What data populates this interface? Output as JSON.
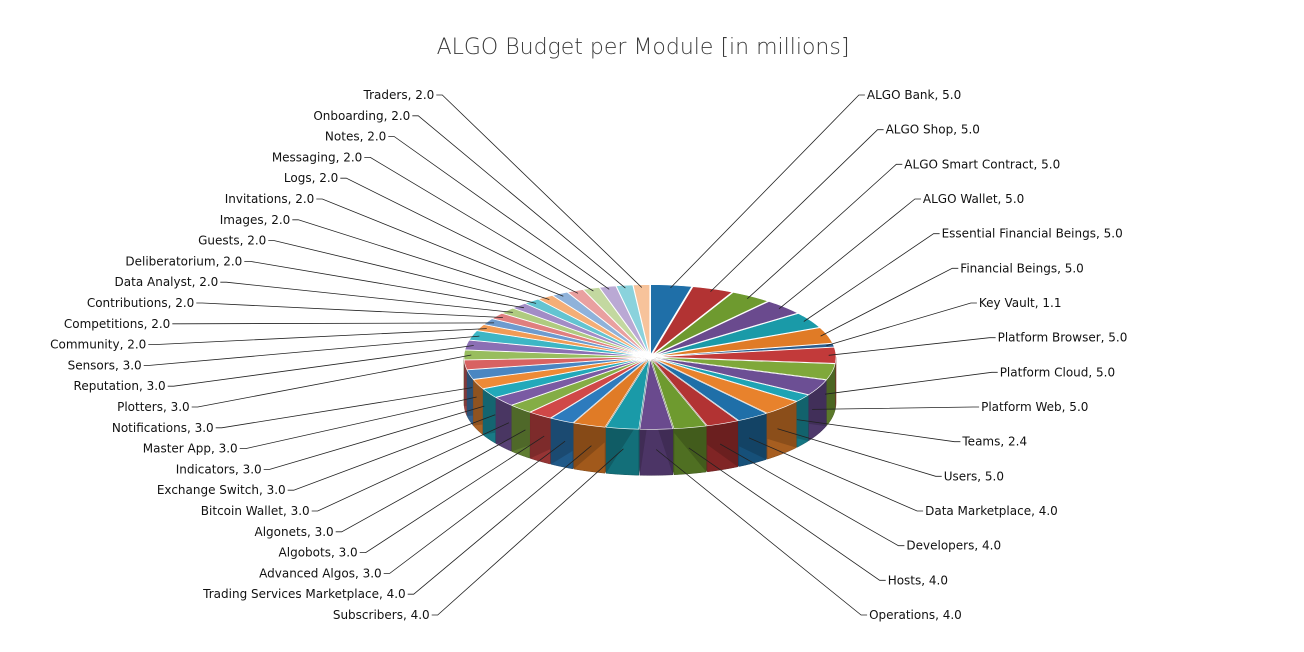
{
  "chart_data": {
    "type": "pie",
    "title": "ALGO Budget per Module  [in millions]",
    "style": "3d-exploded",
    "label_format": "{name}, {value}",
    "slices": [
      {
        "name": "ALGO Bank",
        "value": 5.0,
        "value_text": "5.0",
        "color": "#1f6fa8"
      },
      {
        "name": "ALGO Shop",
        "value": 5.0,
        "value_text": "5.0",
        "color": "#b23333"
      },
      {
        "name": "ALGO Smart Contract",
        "value": 5.0,
        "value_text": "5.0",
        "color": "#6e9a2f"
      },
      {
        "name": "ALGO Wallet",
        "value": 5.0,
        "value_text": "5.0",
        "color": "#6a4a8e"
      },
      {
        "name": "Essential Financial Beings",
        "value": 5.0,
        "value_text": "5.0",
        "color": "#1a9aa8"
      },
      {
        "name": "Financial Beings",
        "value": 5.0,
        "value_text": "5.0",
        "color": "#e07b26"
      },
      {
        "name": "Key Vault",
        "value": 1.1,
        "value_text": "1.1",
        "color": "#2a5d8f"
      },
      {
        "name": "Platform Browser",
        "value": 5.0,
        "value_text": "5.0",
        "color": "#c23a3a"
      },
      {
        "name": "Platform Cloud",
        "value": 5.0,
        "value_text": "5.0",
        "color": "#7fa83a"
      },
      {
        "name": "Platform Web",
        "value": 5.0,
        "value_text": "5.0",
        "color": "#6c4f94"
      },
      {
        "name": "Teams",
        "value": 2.4,
        "value_text": "2.4",
        "color": "#1ea3b4"
      },
      {
        "name": "Users",
        "value": 5.0,
        "value_text": "5.0",
        "color": "#e8822c"
      },
      {
        "name": "Data Marketplace",
        "value": 4.0,
        "value_text": "4.0",
        "color": "#1f6fa8"
      },
      {
        "name": "Developers",
        "value": 4.0,
        "value_text": "4.0",
        "color": "#b23333"
      },
      {
        "name": "Hosts",
        "value": 4.0,
        "value_text": "4.0",
        "color": "#6e9a2f"
      },
      {
        "name": "Operations",
        "value": 4.0,
        "value_text": "4.0",
        "color": "#6a4a8e"
      },
      {
        "name": "Subscribers",
        "value": 4.0,
        "value_text": "4.0",
        "color": "#1a9aa8"
      },
      {
        "name": "Trading Services Marketplace",
        "value": 4.0,
        "value_text": "4.0",
        "color": "#e07b26"
      },
      {
        "name": "Advanced Algos",
        "value": 3.0,
        "value_text": "3.0",
        "color": "#2d7bbd"
      },
      {
        "name": "Algobots",
        "value": 3.0,
        "value_text": "3.0",
        "color": "#d04848"
      },
      {
        "name": "Algonets",
        "value": 3.0,
        "value_text": "3.0",
        "color": "#84ad45"
      },
      {
        "name": "Bitcoin Wallet",
        "value": 3.0,
        "value_text": "3.0",
        "color": "#7a5aa3"
      },
      {
        "name": "Exchange Switch",
        "value": 3.0,
        "value_text": "3.0",
        "color": "#22a9ba"
      },
      {
        "name": "Indicators",
        "value": 3.0,
        "value_text": "3.0",
        "color": "#ee8a36"
      },
      {
        "name": "Master App",
        "value": 3.0,
        "value_text": "3.0",
        "color": "#4a86c2"
      },
      {
        "name": "Notifications",
        "value": 3.0,
        "value_text": "3.0",
        "color": "#d86262"
      },
      {
        "name": "Plotters",
        "value": 3.0,
        "value_text": "3.0",
        "color": "#98bd5e"
      },
      {
        "name": "Reputation",
        "value": 3.0,
        "value_text": "3.0",
        "color": "#8b6fb4"
      },
      {
        "name": "Sensors",
        "value": 3.0,
        "value_text": "3.0",
        "color": "#3db6c5"
      },
      {
        "name": "Community",
        "value": 2.0,
        "value_text": "2.0",
        "color": "#f19b55"
      },
      {
        "name": "Competitions",
        "value": 2.0,
        "value_text": "2.0",
        "color": "#6d9bcf"
      },
      {
        "name": "Contributions",
        "value": 2.0,
        "value_text": "2.0",
        "color": "#e07f7f"
      },
      {
        "name": "Data Analyst",
        "value": 2.0,
        "value_text": "2.0",
        "color": "#afcb7f"
      },
      {
        "name": "Deliberatorium",
        "value": 2.0,
        "value_text": "2.0",
        "color": "#a28cc6"
      },
      {
        "name": "Guests",
        "value": 2.0,
        "value_text": "2.0",
        "color": "#63c4d1"
      },
      {
        "name": "Images",
        "value": 2.0,
        "value_text": "2.0",
        "color": "#f4ae77"
      },
      {
        "name": "Invitations",
        "value": 2.0,
        "value_text": "2.0",
        "color": "#8fb2da"
      },
      {
        "name": "Logs",
        "value": 2.0,
        "value_text": "2.0",
        "color": "#e9a0a0"
      },
      {
        "name": "Messaging",
        "value": 2.0,
        "value_text": "2.0",
        "color": "#c3d8a0"
      },
      {
        "name": "Notes",
        "value": 2.0,
        "value_text": "2.0",
        "color": "#baa9d4"
      },
      {
        "name": "Onboarding",
        "value": 2.0,
        "value_text": "2.0",
        "color": "#8ad2dc"
      },
      {
        "name": "Traders",
        "value": 2.0,
        "value_text": "2.0",
        "color": "#f7c39b"
      }
    ]
  }
}
